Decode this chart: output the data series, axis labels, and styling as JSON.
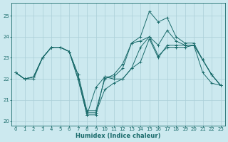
{
  "xlabel": "Humidex (Indice chaleur)",
  "ylabel": "",
  "xlim": [
    -0.5,
    23.5
  ],
  "ylim": [
    19.8,
    25.6
  ],
  "yticks": [
    20,
    21,
    22,
    23,
    24,
    25
  ],
  "xticks": [
    0,
    1,
    2,
    3,
    4,
    5,
    6,
    7,
    8,
    9,
    10,
    11,
    12,
    13,
    14,
    15,
    16,
    17,
    18,
    19,
    20,
    21,
    22,
    23
  ],
  "bg_color": "#cce9ef",
  "grid_color": "#aacfd8",
  "line_color": "#1a6b6b",
  "lines": [
    {
      "x": [
        0,
        1,
        2,
        3,
        4,
        5,
        6,
        7,
        8,
        9,
        10,
        11,
        12,
        13,
        14,
        15,
        16,
        17,
        18,
        19,
        20,
        21,
        22,
        23
      ],
      "y": [
        22.3,
        22.0,
        22.0,
        23.0,
        23.5,
        23.5,
        23.3,
        22.2,
        20.4,
        20.4,
        21.5,
        21.8,
        22.0,
        22.5,
        22.8,
        23.9,
        23.0,
        23.6,
        23.6,
        23.6,
        23.6,
        22.9,
        22.2,
        21.7
      ]
    },
    {
      "comment": "line2 - goes very high at 15 (25.2), then 16=24.7, 17=24.9",
      "x": [
        0,
        1,
        2,
        3,
        4,
        5,
        6,
        7,
        8,
        9,
        10,
        11,
        12,
        13,
        14,
        15,
        16,
        17,
        18,
        19,
        20,
        21,
        22,
        23
      ],
      "y": [
        22.3,
        22.0,
        22.1,
        23.0,
        23.5,
        23.5,
        23.3,
        22.2,
        20.5,
        20.5,
        22.0,
        22.2,
        22.7,
        23.7,
        24.0,
        25.2,
        24.7,
        24.9,
        24.0,
        23.7,
        23.7,
        22.9,
        22.2,
        21.7
      ]
    },
    {
      "comment": "line3 - middle, peaks at 15=24.0, 17=24.3",
      "x": [
        0,
        1,
        2,
        3,
        4,
        5,
        6,
        7,
        8,
        9,
        10,
        11,
        12,
        13,
        14,
        15,
        16,
        17,
        18,
        19,
        20,
        21,
        22,
        23
      ],
      "y": [
        22.3,
        22.0,
        22.1,
        23.0,
        23.5,
        23.5,
        23.3,
        22.0,
        20.3,
        20.3,
        22.1,
        22.1,
        22.5,
        23.7,
        23.8,
        24.0,
        23.6,
        24.3,
        23.8,
        23.6,
        23.6,
        22.9,
        22.2,
        21.7
      ]
    },
    {
      "x": [
        0,
        1,
        2,
        3,
        4,
        5,
        6,
        7,
        8,
        9,
        10,
        11,
        12,
        13,
        14,
        15,
        16,
        17,
        18,
        19,
        20,
        21,
        22,
        23
      ],
      "y": [
        22.3,
        22.0,
        22.1,
        23.0,
        23.5,
        23.5,
        23.3,
        22.0,
        20.3,
        21.6,
        22.1,
        22.0,
        22.0,
        22.5,
        23.5,
        24.0,
        23.1,
        23.5,
        23.5,
        23.5,
        23.6,
        22.3,
        21.8,
        21.7
      ]
    }
  ],
  "title_fontsize": 6,
  "xlabel_fontsize": 6,
  "tick_fontsize": 5
}
